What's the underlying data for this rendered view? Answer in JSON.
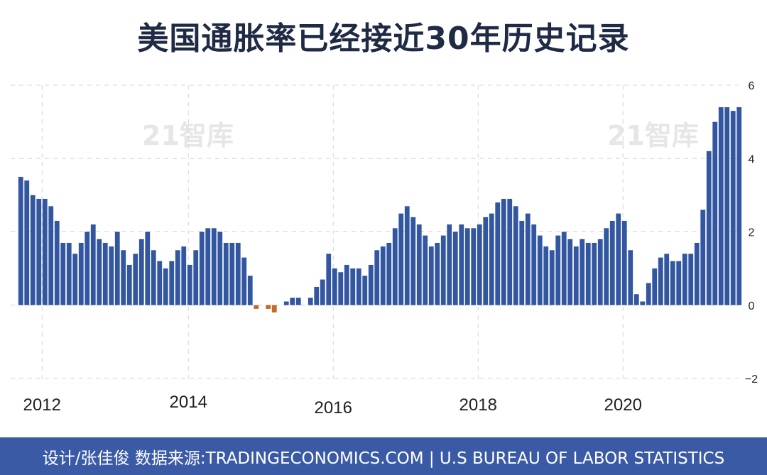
{
  "header": {
    "title": "美国通胀率已经接近30年历史记录"
  },
  "watermark": {
    "text": "21智库"
  },
  "footer": {
    "text": "设计/张佳俊  数据来源:TRADINGECONOMICS.COM  |  U.S BUREAU OF LABOR STATISTICS"
  },
  "chart_data": {
    "type": "bar",
    "title": "美国通胀率已经接近30年历史记录",
    "xlabel": "",
    "ylabel": "",
    "ylim": [
      -2,
      6
    ],
    "yticks": [
      6,
      4,
      2,
      0,
      -2
    ],
    "ytick_labels": [
      "6",
      "4",
      "2",
      "0",
      "−2"
    ],
    "xticks": [
      {
        "label": "2012",
        "index": 0
      },
      {
        "label": "2014",
        "index": 24
      },
      {
        "label": "2016",
        "index": 48
      },
      {
        "label": "2018",
        "index": 72
      },
      {
        "label": "2020",
        "index": 96
      }
    ],
    "grid": true,
    "colors": {
      "positive": "#3356a0",
      "negative": "#c06a2b"
    },
    "start": "2011-12",
    "values": [
      3.5,
      3.4,
      3.0,
      2.9,
      2.9,
      2.7,
      2.3,
      1.7,
      1.7,
      1.4,
      1.7,
      2.0,
      2.2,
      1.8,
      1.7,
      1.6,
      2.0,
      1.5,
      1.1,
      1.4,
      1.8,
      2.0,
      1.5,
      1.2,
      1.0,
      1.2,
      1.5,
      1.6,
      1.1,
      1.5,
      2.0,
      2.1,
      2.1,
      2.0,
      1.7,
      1.7,
      1.7,
      1.3,
      0.8,
      -0.1,
      0.0,
      -0.1,
      -0.2,
      0.0,
      0.1,
      0.2,
      0.2,
      0.0,
      0.2,
      0.5,
      0.7,
      1.4,
      1.0,
      0.9,
      1.1,
      1.0,
      1.0,
      0.8,
      1.1,
      1.5,
      1.6,
      1.7,
      2.1,
      2.5,
      2.7,
      2.4,
      2.2,
      1.9,
      1.6,
      1.7,
      1.9,
      2.2,
      2.0,
      2.2,
      2.1,
      2.1,
      2.2,
      2.4,
      2.5,
      2.8,
      2.9,
      2.9,
      2.7,
      2.3,
      2.5,
      2.2,
      1.9,
      1.6,
      1.5,
      1.9,
      2.0,
      1.8,
      1.6,
      1.8,
      1.7,
      1.7,
      1.8,
      2.1,
      2.3,
      2.5,
      2.3,
      1.5,
      0.3,
      0.1,
      0.6,
      1.0,
      1.3,
      1.4,
      1.2,
      1.2,
      1.4,
      1.4,
      1.7,
      2.6,
      4.2,
      5.0,
      5.4,
      5.4,
      5.3,
      5.4
    ]
  }
}
